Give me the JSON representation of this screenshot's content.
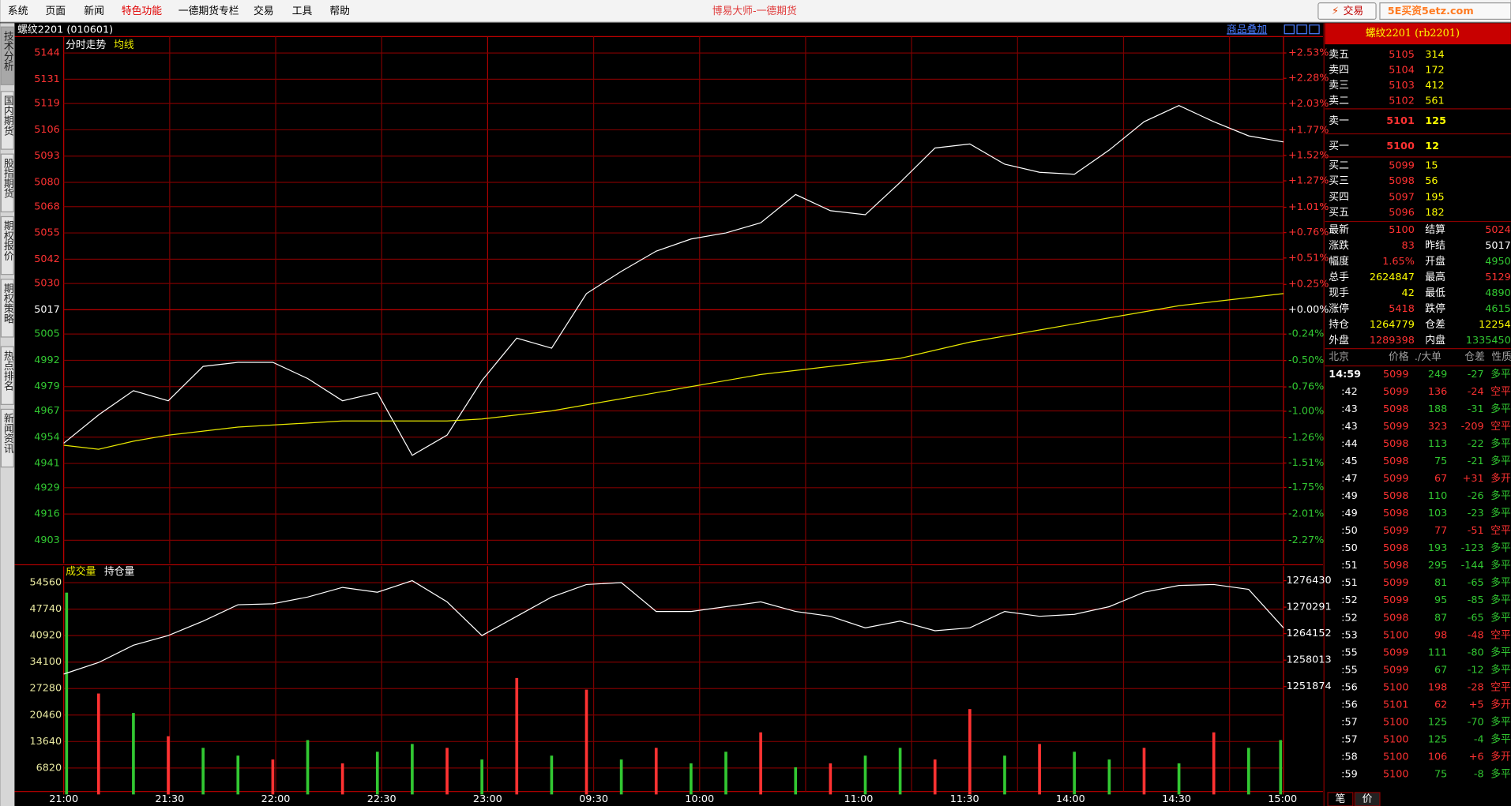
{
  "menu": [
    "系统",
    "页面",
    "新闻",
    "特色功能",
    "一德期货专栏",
    "交易",
    "工具",
    "帮助"
  ],
  "window_title": "博易大师-一德期货",
  "trade_button": "交易",
  "watermark": "5E买资5etz.com",
  "side_tabs": [
    "技术分析",
    "国内期货",
    "股指期货",
    "期权报价",
    "期权策略",
    "热点排名",
    "新闻资讯"
  ],
  "chart_header": {
    "symbol": "螺纹2201 (010601)",
    "overlay": "商品叠加"
  },
  "chart_data": [
    {
      "type": "line",
      "series": [
        {
          "name": "分时走势",
          "color": "#ffffff",
          "values": [
            4951,
            4965,
            4977,
            4972,
            4989,
            4991,
            4991,
            4983,
            4972,
            4976,
            4945,
            4955,
            4982,
            5003,
            4998,
            5025,
            5036,
            5046,
            5052,
            5055,
            5060,
            5074,
            5066,
            5064,
            5080,
            5097,
            5099,
            5089,
            5085,
            5084,
            5096,
            5110,
            5118,
            5110,
            5103,
            5100
          ]
        },
        {
          "name": "均线",
          "color": "#e8e800",
          "values": [
            4950,
            4948,
            4952,
            4955,
            4957,
            4959,
            4960,
            4961,
            4962,
            4962,
            4962,
            4962,
            4963,
            4965,
            4967,
            4970,
            4973,
            4976,
            4979,
            4982,
            4985,
            4987,
            4989,
            4991,
            4993,
            4997,
            5001,
            5004,
            5007,
            5010,
            5013,
            5016,
            5019,
            5021,
            5023,
            5025
          ]
        }
      ],
      "ylim": [
        4891.6,
        5152.1
      ],
      "yticks": [
        5144,
        5131,
        5119,
        5106,
        5093,
        5080,
        5068,
        5055,
        5042,
        5030,
        5017,
        5005,
        4992,
        4979,
        4967,
        4954,
        4941,
        4929,
        4916,
        4903
      ],
      "y2lim": [
        -2.498,
        2.691
      ],
      "y2ticks": [
        {
          "value": 2.53,
          "label": "+2.53%"
        },
        {
          "value": 2.28,
          "label": "+2.28%"
        },
        {
          "value": 2.03,
          "label": "+2.03%"
        },
        {
          "value": 1.77,
          "label": "+1.77%"
        },
        {
          "value": 1.52,
          "label": "+1.52%"
        },
        {
          "value": 1.27,
          "label": "+1.27%"
        },
        {
          "value": 1.01,
          "label": "+1.01%"
        },
        {
          "value": 0.76,
          "label": "+0.76%"
        },
        {
          "value": 0.51,
          "label": "+0.51%"
        },
        {
          "value": 0.25,
          "label": "+0.25%"
        },
        {
          "value": 0,
          "label": "+0.00%"
        },
        {
          "value": -0.24,
          "label": "-0.24%"
        },
        {
          "value": -0.5,
          "label": "-0.50%"
        },
        {
          "value": -0.76,
          "label": "-0.76%"
        },
        {
          "value": -1,
          "label": "-1.00%"
        },
        {
          "value": -1.26,
          "label": "-1.26%"
        },
        {
          "value": -1.51,
          "label": "-1.51%"
        },
        {
          "value": -1.75,
          "label": "-1.75%"
        },
        {
          "value": -2.01,
          "label": "-2.01%"
        },
        {
          "value": -2.27,
          "label": "-2.27%"
        }
      ],
      "grid": true
    },
    {
      "type": "bar",
      "series": [
        {
          "name": "成交量",
          "color": "#e8e800",
          "values": [
            52000,
            26000,
            21000,
            15000,
            12000,
            10000,
            9000,
            14000,
            8000,
            11000,
            13000,
            12000,
            9000,
            30000,
            10000,
            27000,
            9000,
            12000,
            8000,
            11000,
            16000,
            7000,
            8000,
            10000,
            12000,
            9000,
            22000,
            10000,
            13000,
            11000,
            9000,
            12000,
            8000,
            16000,
            12000,
            14000
          ],
          "bar_colors": [
            "#32c832",
            "#ff3232",
            "#32c832",
            "#ff3232",
            "#32c832",
            "#32c832",
            "#ff3232",
            "#32c832",
            "#ff3232",
            "#32c832",
            "#32c832",
            "#ff3232",
            "#32c832",
            "#ff3232",
            "#32c832",
            "#ff3232",
            "#32c832",
            "#ff3232",
            "#32c832",
            "#32c832",
            "#ff3232",
            "#32c832",
            "#ff3232",
            "#32c832",
            "#32c832",
            "#ff3232",
            "#ff3232",
            "#32c832",
            "#ff3232",
            "#32c832",
            "#32c832",
            "#ff3232",
            "#32c832",
            "#ff3232",
            "#32c832",
            "#32c832"
          ]
        },
        {
          "name": "持仓量",
          "color": "#ffffff",
          "axis": "y2",
          "values": [
            1254776,
            1257455,
            1261473,
            1263705,
            1267054,
            1270849,
            1271073,
            1272636,
            1274868,
            1273752,
            1276430,
            1271519,
            1263705,
            1268170,
            1272636,
            1275537,
            1275984,
            1269287,
            1269287,
            1270403,
            1271519,
            1269287,
            1268170,
            1265491,
            1267054,
            1264822,
            1265491,
            1269287,
            1268170,
            1268617,
            1270403,
            1273752,
            1275314,
            1275537,
            1274421,
            1265491
          ]
        }
      ],
      "ylim": [
        0,
        58800
      ],
      "yticks": [
        54560,
        47740,
        40920,
        34100,
        27280,
        20460,
        13640,
        6820
      ],
      "y2lim": [
        1226872,
        1279778
      ],
      "y2ticks": [
        1276430,
        1270291,
        1264152,
        1258013,
        1251874
      ],
      "xtick_labels": [
        "21:00",
        "21:30",
        "22:00",
        "22:30",
        "23:00",
        "09:30",
        "10:00",
        "11:00",
        "11:30",
        "14:00",
        "14:30",
        "15:00"
      ]
    }
  ],
  "quote": {
    "title": "螺纹2201 (rb2201)",
    "book": [
      {
        "label": "卖五",
        "price": "5105",
        "volume": "314"
      },
      {
        "label": "卖四",
        "price": "5104",
        "volume": "172"
      },
      {
        "label": "卖三",
        "price": "5103",
        "volume": "412"
      },
      {
        "label": "卖二",
        "price": "5102",
        "volume": "561"
      },
      {
        "label": "卖一",
        "price": "5101",
        "volume": "125"
      },
      {
        "label": "买一",
        "price": "5100",
        "volume": "12"
      },
      {
        "label": "买二",
        "price": "5099",
        "volume": "15"
      },
      {
        "label": "买三",
        "price": "5098",
        "volume": "56"
      },
      {
        "label": "买四",
        "price": "5097",
        "volume": "195"
      },
      {
        "label": "买五",
        "price": "5096",
        "volume": "182"
      }
    ],
    "stats": [
      {
        "label": "最新",
        "value": "5100",
        "color": "#ff3232"
      },
      {
        "label": "结算",
        "value": "5024",
        "color": "#ff3232"
      },
      {
        "label": "涨跌",
        "value": "83",
        "color": "#ff3232"
      },
      {
        "label": "昨结",
        "value": "5017",
        "color": "#ffffff"
      },
      {
        "label": "幅度",
        "value": "1.65%",
        "color": "#ff3232"
      },
      {
        "label": "开盘",
        "value": "4950",
        "color": "#32c832"
      },
      {
        "label": "总手",
        "value": "2624847",
        "color": "#ffff00"
      },
      {
        "label": "最高",
        "value": "5129",
        "color": "#ff3232"
      },
      {
        "label": "现手",
        "value": "42",
        "color": "#ffff00"
      },
      {
        "label": "最低",
        "value": "4890",
        "color": "#32c832"
      },
      {
        "label": "涨停",
        "value": "5418",
        "color": "#ff3232"
      },
      {
        "label": "跌停",
        "value": "4615",
        "color": "#32c832"
      },
      {
        "label": "持仓",
        "value": "1264779",
        "color": "#ffff00"
      },
      {
        "label": "仓差",
        "value": "12254",
        "color": "#ffff00"
      },
      {
        "label": "外盘",
        "value": "1289398",
        "color": "#ff3232"
      },
      {
        "label": "内盘",
        "value": "1335450",
        "color": "#32c832"
      }
    ],
    "ticks_header": [
      "北京",
      "价格",
      "./大单",
      "仓差",
      "性质"
    ],
    "ticks": [
      {
        "time": "14:59",
        "price": "5099",
        "volume": "249",
        "diff": "-27",
        "nature": "多平",
        "color": "#32c832"
      },
      {
        "time": ":42",
        "price": "5099",
        "volume": "136",
        "diff": "-24",
        "nature": "空平",
        "color": "#ff3232"
      },
      {
        "time": ":43",
        "price": "5098",
        "volume": "188",
        "diff": "-31",
        "nature": "多平",
        "color": "#32c832"
      },
      {
        "time": ":43",
        "price": "5099",
        "volume": "323",
        "diff": "-209",
        "nature": "空平",
        "color": "#ff3232"
      },
      {
        "time": ":44",
        "price": "5098",
        "volume": "113",
        "diff": "-22",
        "nature": "多平",
        "color": "#32c832"
      },
      {
        "time": ":45",
        "price": "5098",
        "volume": "75",
        "diff": "-21",
        "nature": "多平",
        "color": "#32c832"
      },
      {
        "time": ":47",
        "price": "5099",
        "volume": "67",
        "diff": "+31",
        "nature": "多开",
        "color": "#ff3232"
      },
      {
        "time": ":49",
        "price": "5098",
        "volume": "110",
        "diff": "-26",
        "nature": "多平",
        "color": "#32c832"
      },
      {
        "time": ":49",
        "price": "5098",
        "volume": "103",
        "diff": "-23",
        "nature": "多平",
        "color": "#32c832"
      },
      {
        "time": ":50",
        "price": "5099",
        "volume": "77",
        "diff": "-51",
        "nature": "空平",
        "color": "#ff3232"
      },
      {
        "time": ":50",
        "price": "5098",
        "volume": "193",
        "diff": "-123",
        "nature": "多平",
        "color": "#32c832"
      },
      {
        "time": ":51",
        "price": "5098",
        "volume": "295",
        "diff": "-144",
        "nature": "多平",
        "color": "#32c832"
      },
      {
        "time": ":51",
        "price": "5099",
        "volume": "81",
        "diff": "-65",
        "nature": "多平",
        "color": "#32c832"
      },
      {
        "time": ":52",
        "price": "5099",
        "volume": "95",
        "diff": "-85",
        "nature": "多平",
        "color": "#32c832"
      },
      {
        "time": ":52",
        "price": "5098",
        "volume": "87",
        "diff": "-65",
        "nature": "多平",
        "color": "#32c832"
      },
      {
        "time": ":53",
        "price": "5100",
        "volume": "98",
        "diff": "-48",
        "nature": "空平",
        "color": "#ff3232"
      },
      {
        "time": ":55",
        "price": "5099",
        "volume": "111",
        "diff": "-80",
        "nature": "多平",
        "color": "#32c832"
      },
      {
        "time": ":55",
        "price": "5099",
        "volume": "67",
        "diff": "-12",
        "nature": "多平",
        "color": "#32c832"
      },
      {
        "time": ":56",
        "price": "5100",
        "volume": "198",
        "diff": "-28",
        "nature": "空平",
        "color": "#ff3232"
      },
      {
        "time": ":56",
        "price": "5101",
        "volume": "62",
        "diff": "+5",
        "nature": "多开",
        "color": "#ff3232"
      },
      {
        "time": ":57",
        "price": "5100",
        "volume": "125",
        "diff": "-70",
        "nature": "多平",
        "color": "#32c832"
      },
      {
        "time": ":57",
        "price": "5100",
        "volume": "125",
        "diff": "-4",
        "nature": "多平",
        "color": "#32c832"
      },
      {
        "time": ":58",
        "price": "5100",
        "volume": "106",
        "diff": "+6",
        "nature": "多开",
        "color": "#ff3232"
      },
      {
        "time": ":59",
        "price": "5100",
        "volume": "75",
        "diff": "-8",
        "nature": "多平",
        "color": "#32c832"
      }
    ],
    "bottom_tabs": [
      "笔",
      "价"
    ]
  }
}
